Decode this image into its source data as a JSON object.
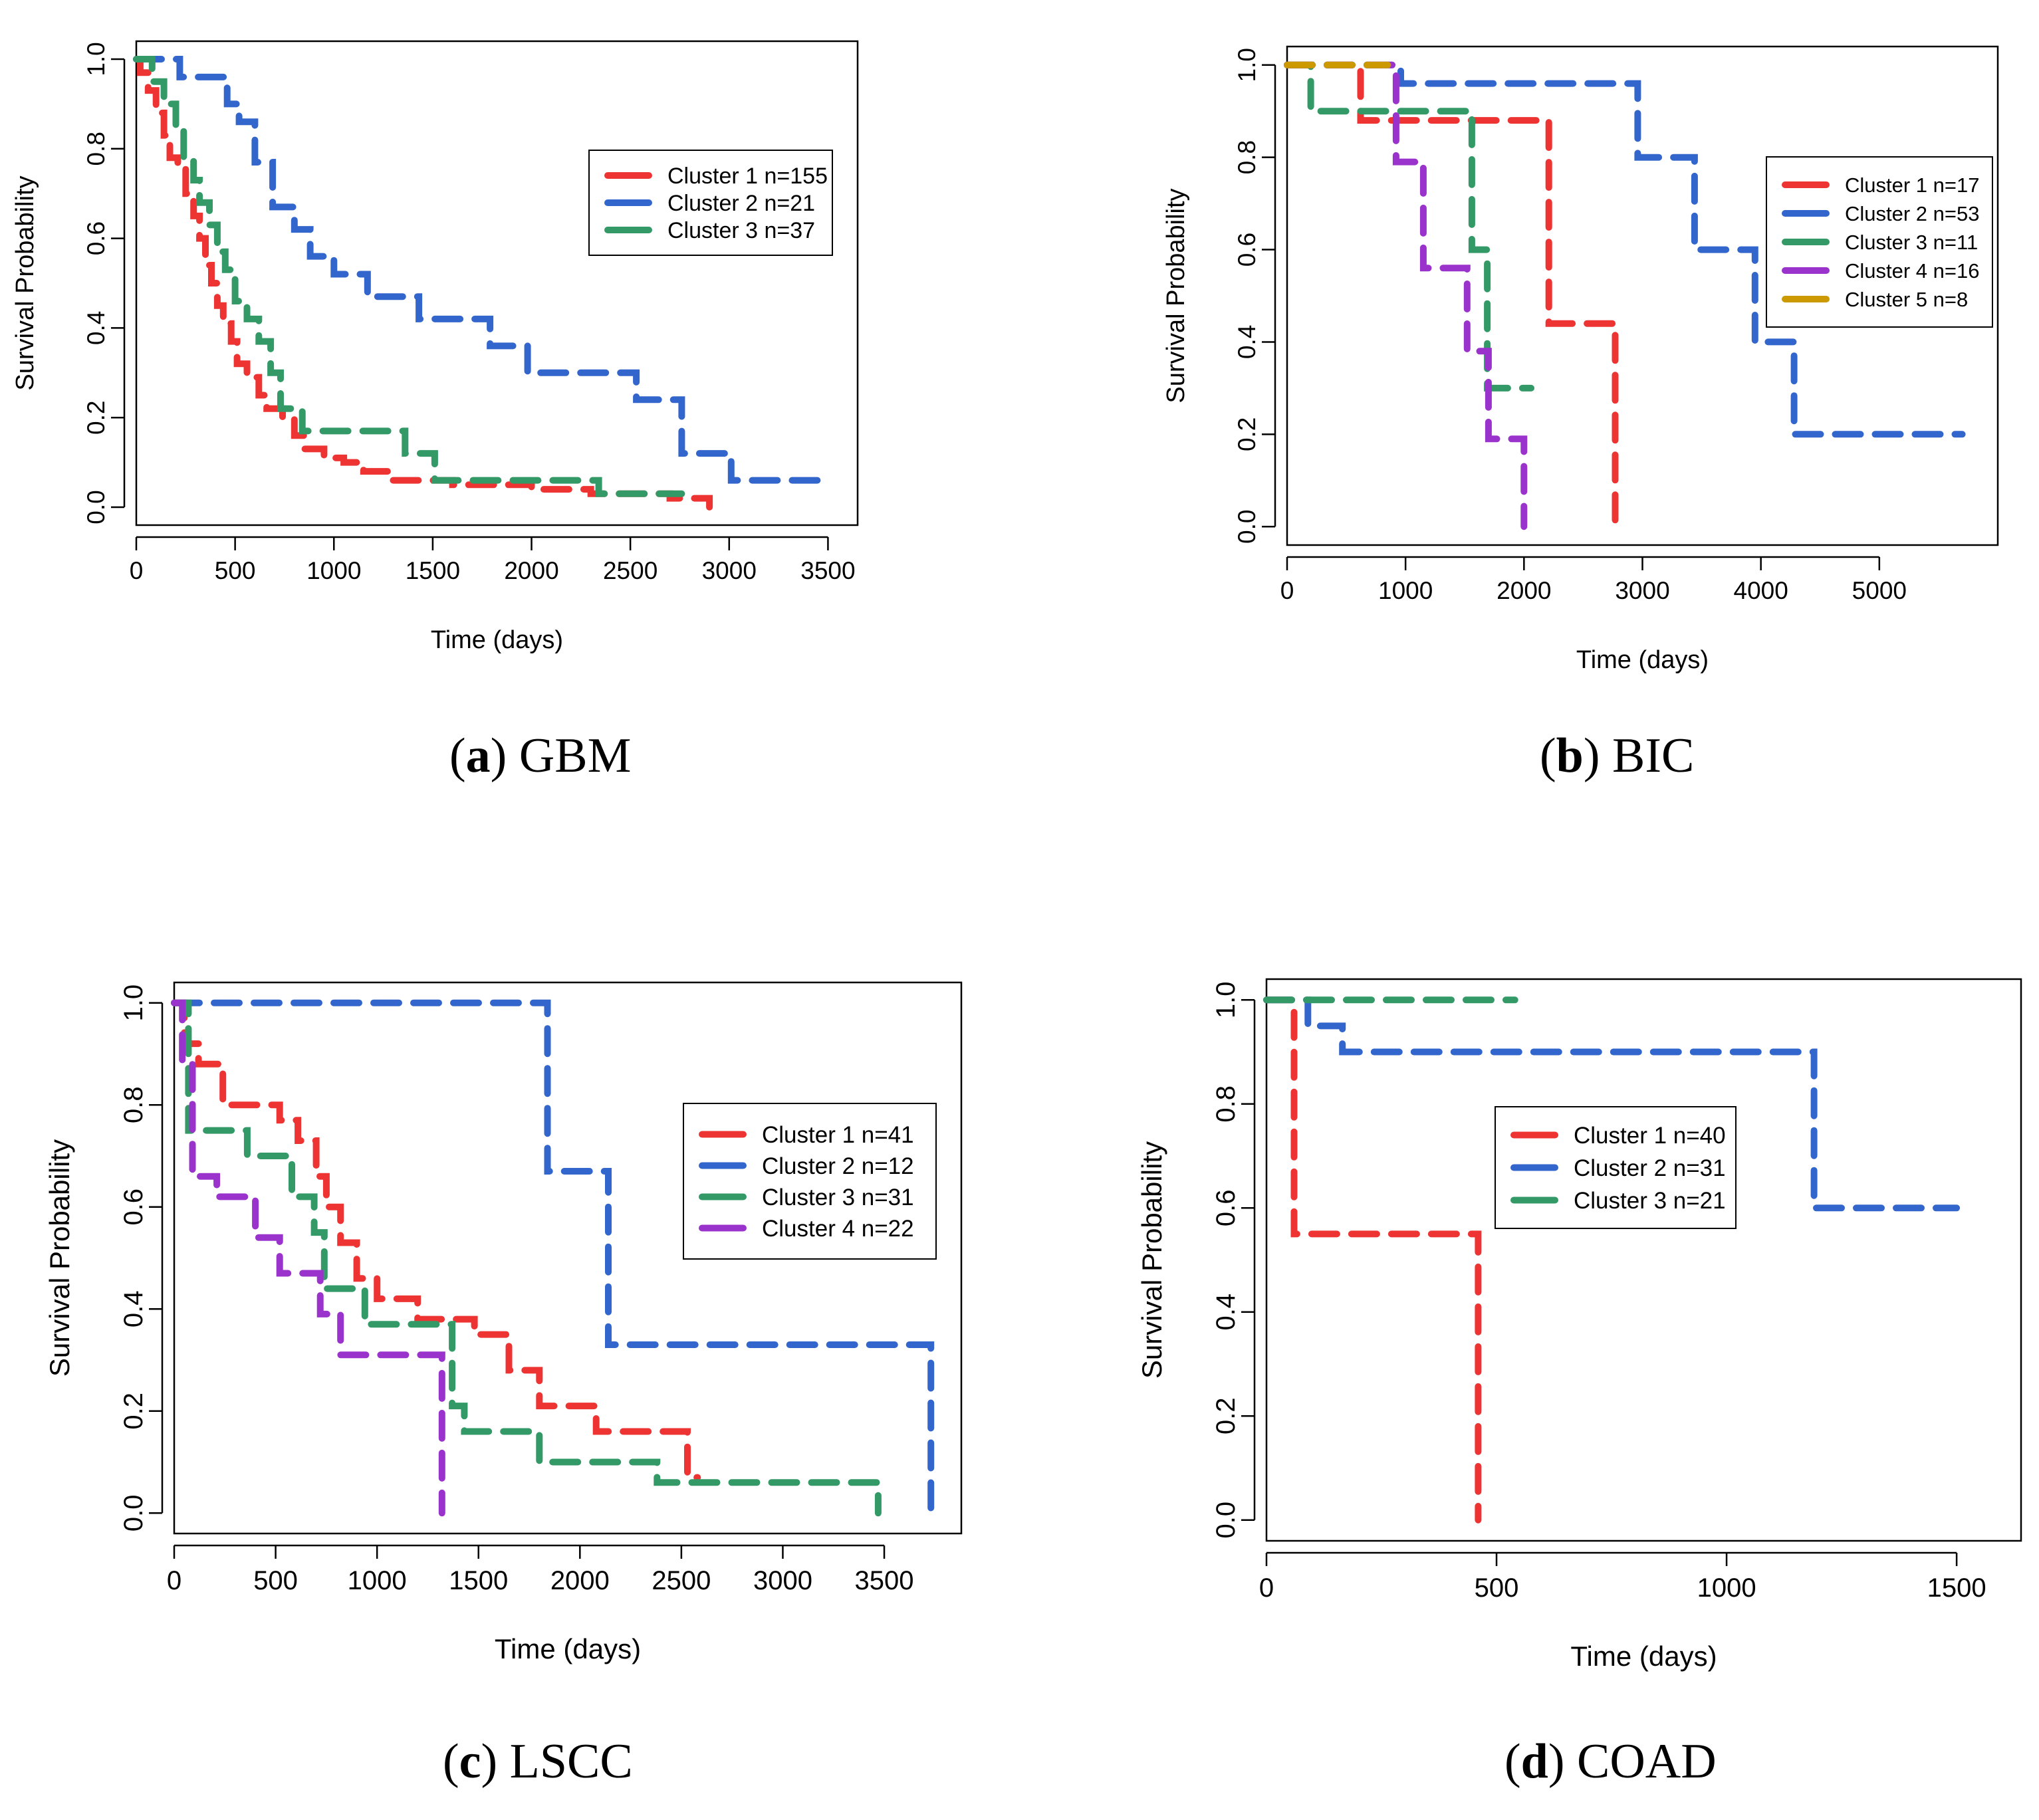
{
  "colors": {
    "red": "#ee3333",
    "blue": "#3366cc",
    "green": "#339966",
    "purple": "#9933cc",
    "gold": "#cc9900"
  },
  "chart_data": [
    {
      "id": "a",
      "type": "line",
      "caption": {
        "letter": "a",
        "name": "GBM"
      },
      "xlabel": "Time (days)",
      "ylabel": "Survival Probability",
      "xlim": [
        0,
        3650
      ],
      "ylim": [
        -0.04,
        1.04
      ],
      "xticks": [
        0,
        500,
        1000,
        1500,
        2000,
        2500,
        3000,
        3500
      ],
      "yticks": [
        0.0,
        0.2,
        0.4,
        0.6,
        0.8,
        1.0
      ],
      "ytick_labels": [
        "0.0",
        "0.2",
        "0.4",
        "0.6",
        "0.8",
        "1.0"
      ],
      "legend": "top-right",
      "series": [
        {
          "name": "Cluster 1 n=155",
          "color": "red",
          "steps": [
            [
              0,
              1.0
            ],
            [
              20,
              0.97
            ],
            [
              60,
              0.93
            ],
            [
              100,
              0.88
            ],
            [
              140,
              0.83
            ],
            [
              170,
              0.78
            ],
            [
              210,
              0.76
            ],
            [
              250,
              0.7
            ],
            [
              290,
              0.65
            ],
            [
              320,
              0.6
            ],
            [
              350,
              0.54
            ],
            [
              380,
              0.5
            ],
            [
              410,
              0.45
            ],
            [
              440,
              0.41
            ],
            [
              480,
              0.37
            ],
            [
              510,
              0.32
            ],
            [
              560,
              0.29
            ],
            [
              620,
              0.25
            ],
            [
              660,
              0.22
            ],
            [
              740,
              0.2
            ],
            [
              800,
              0.16
            ],
            [
              850,
              0.13
            ],
            [
              950,
              0.11
            ],
            [
              1050,
              0.1
            ],
            [
              1150,
              0.08
            ],
            [
              1300,
              0.06
            ],
            [
              1600,
              0.05
            ],
            [
              2000,
              0.04
            ],
            [
              2300,
              0.03
            ],
            [
              2700,
              0.02
            ],
            [
              2900,
              0.0
            ]
          ]
        },
        {
          "name": "Cluster 2 n=21",
          "color": "blue",
          "steps": [
            [
              0,
              1.0
            ],
            [
              220,
              0.96
            ],
            [
              460,
              0.9
            ],
            [
              520,
              0.86
            ],
            [
              600,
              0.77
            ],
            [
              690,
              0.67
            ],
            [
              800,
              0.62
            ],
            [
              880,
              0.56
            ],
            [
              1000,
              0.52
            ],
            [
              1170,
              0.47
            ],
            [
              1430,
              0.42
            ],
            [
              1790,
              0.36
            ],
            [
              1980,
              0.3
            ],
            [
              2530,
              0.24
            ],
            [
              2760,
              0.12
            ],
            [
              3010,
              0.06
            ],
            [
              3500,
              0.06
            ]
          ]
        },
        {
          "name": "Cluster 3 n=37",
          "color": "green",
          "steps": [
            [
              0,
              1.0
            ],
            [
              80,
              0.95
            ],
            [
              140,
              0.9
            ],
            [
              200,
              0.84
            ],
            [
              240,
              0.78
            ],
            [
              290,
              0.73
            ],
            [
              320,
              0.68
            ],
            [
              370,
              0.63
            ],
            [
              410,
              0.57
            ],
            [
              450,
              0.53
            ],
            [
              500,
              0.46
            ],
            [
              560,
              0.42
            ],
            [
              620,
              0.37
            ],
            [
              680,
              0.3
            ],
            [
              730,
              0.22
            ],
            [
              840,
              0.17
            ],
            [
              1360,
              0.12
            ],
            [
              1510,
              0.06
            ],
            [
              2340,
              0.03
            ],
            [
              2760,
              0.03
            ]
          ]
        }
      ]
    },
    {
      "id": "b",
      "type": "line",
      "caption": {
        "letter": "b",
        "name": "BIC"
      },
      "xlabel": "Time (days)",
      "ylabel": "Survival Probability",
      "xlim": [
        0,
        6000
      ],
      "ylim": [
        -0.04,
        1.04
      ],
      "xticks": [
        0,
        1000,
        2000,
        3000,
        4000,
        5000
      ],
      "yticks": [
        0.0,
        0.2,
        0.4,
        0.6,
        0.8,
        1.0
      ],
      "ytick_labels": [
        "0.0",
        "0.2",
        "0.4",
        "0.6",
        "0.8",
        "1.0"
      ],
      "legend": "top-right",
      "series": [
        {
          "name": "Cluster 1 n=17",
          "color": "red",
          "steps": [
            [
              0,
              1.0
            ],
            [
              620,
              0.88
            ],
            [
              2210,
              0.44
            ],
            [
              2770,
              0.0
            ]
          ]
        },
        {
          "name": "Cluster 2 n=53",
          "color": "blue",
          "steps": [
            [
              0,
              1.0
            ],
            [
              960,
              0.96
            ],
            [
              2960,
              0.8
            ],
            [
              3440,
              0.6
            ],
            [
              3950,
              0.4
            ],
            [
              4280,
              0.2
            ],
            [
              5700,
              0.2
            ]
          ]
        },
        {
          "name": "Cluster 3 n=11",
          "color": "green",
          "steps": [
            [
              0,
              1.0
            ],
            [
              200,
              0.9
            ],
            [
              1560,
              0.6
            ],
            [
              1690,
              0.3
            ],
            [
              2060,
              0.3
            ]
          ]
        },
        {
          "name": "Cluster 4 n=16",
          "color": "purple",
          "steps": [
            [
              0,
              1.0
            ],
            [
              920,
              0.79
            ],
            [
              1150,
              0.56
            ],
            [
              1520,
              0.38
            ],
            [
              1700,
              0.19
            ],
            [
              2000,
              0.0
            ]
          ]
        },
        {
          "name": "Cluster 5 n=8",
          "color": "gold",
          "steps": [
            [
              0,
              1.0
            ],
            [
              850,
              1.0
            ]
          ]
        }
      ]
    },
    {
      "id": "c",
      "type": "line",
      "caption": {
        "letter": "c",
        "name": "LSCC"
      },
      "xlabel": "Time (days)",
      "ylabel": "Survival Probability",
      "xlim": [
        0,
        3880
      ],
      "ylim": [
        -0.04,
        1.04
      ],
      "xticks": [
        0,
        500,
        1000,
        1500,
        2000,
        2500,
        3000,
        3500
      ],
      "yticks": [
        0.0,
        0.2,
        0.4,
        0.6,
        0.8,
        1.0
      ],
      "ytick_labels": [
        "0.0",
        "0.2",
        "0.4",
        "0.6",
        "0.8",
        "1.0"
      ],
      "legend": "top-right",
      "series": [
        {
          "name": "Cluster 1 n=41",
          "color": "red",
          "steps": [
            [
              0,
              1.0
            ],
            [
              50,
              0.92
            ],
            [
              120,
              0.88
            ],
            [
              240,
              0.8
            ],
            [
              520,
              0.77
            ],
            [
              610,
              0.73
            ],
            [
              700,
              0.66
            ],
            [
              750,
              0.6
            ],
            [
              820,
              0.53
            ],
            [
              900,
              0.46
            ],
            [
              1000,
              0.42
            ],
            [
              1200,
              0.38
            ],
            [
              1480,
              0.35
            ],
            [
              1650,
              0.28
            ],
            [
              1800,
              0.21
            ],
            [
              2080,
              0.16
            ],
            [
              2530,
              0.07
            ],
            [
              2580,
              0.07
            ]
          ]
        },
        {
          "name": "Cluster 2 n=12",
          "color": "blue",
          "steps": [
            [
              0,
              1.0
            ],
            [
              1840,
              0.67
            ],
            [
              2140,
              0.33
            ],
            [
              3730,
              0.0
            ]
          ]
        },
        {
          "name": "Cluster 3 n=31",
          "color": "green",
          "steps": [
            [
              0,
              1.0
            ],
            [
              70,
              0.75
            ],
            [
              360,
              0.7
            ],
            [
              580,
              0.62
            ],
            [
              690,
              0.55
            ],
            [
              740,
              0.44
            ],
            [
              940,
              0.37
            ],
            [
              1370,
              0.21
            ],
            [
              1430,
              0.16
            ],
            [
              1800,
              0.1
            ],
            [
              2380,
              0.06
            ],
            [
              3470,
              0.0
            ]
          ]
        },
        {
          "name": "Cluster 4 n=22",
          "color": "purple",
          "steps": [
            [
              0,
              1.0
            ],
            [
              40,
              0.88
            ],
            [
              90,
              0.66
            ],
            [
              210,
              0.62
            ],
            [
              400,
              0.54
            ],
            [
              520,
              0.47
            ],
            [
              720,
              0.39
            ],
            [
              820,
              0.31
            ],
            [
              1320,
              0.0
            ]
          ]
        }
      ]
    },
    {
      "id": "d",
      "type": "line",
      "caption": {
        "letter": "d",
        "name": "COAD"
      },
      "xlabel": "Time (days)",
      "ylabel": "Survival Probability",
      "xlim": [
        0,
        1640
      ],
      "ylim": [
        -0.04,
        1.04
      ],
      "xticks": [
        0,
        500,
        1000,
        1500
      ],
      "yticks": [
        0.0,
        0.2,
        0.4,
        0.6,
        0.8,
        1.0
      ],
      "ytick_labels": [
        "0.0",
        "0.2",
        "0.4",
        "0.6",
        "0.8",
        "1.0"
      ],
      "legend": "center",
      "series": [
        {
          "name": "Cluster 1 n=40",
          "color": "red",
          "steps": [
            [
              0,
              1.0
            ],
            [
              60,
              0.55
            ],
            [
              460,
              0.0
            ]
          ]
        },
        {
          "name": "Cluster 2 n=31",
          "color": "blue",
          "steps": [
            [
              0,
              1.0
            ],
            [
              90,
              0.95
            ],
            [
              165,
              0.9
            ],
            [
              1190,
              0.6
            ],
            [
              1500,
              0.6
            ]
          ]
        },
        {
          "name": "Cluster 3 n=21",
          "color": "green",
          "steps": [
            [
              0,
              1.0
            ],
            [
              540,
              1.0
            ]
          ]
        }
      ]
    }
  ]
}
